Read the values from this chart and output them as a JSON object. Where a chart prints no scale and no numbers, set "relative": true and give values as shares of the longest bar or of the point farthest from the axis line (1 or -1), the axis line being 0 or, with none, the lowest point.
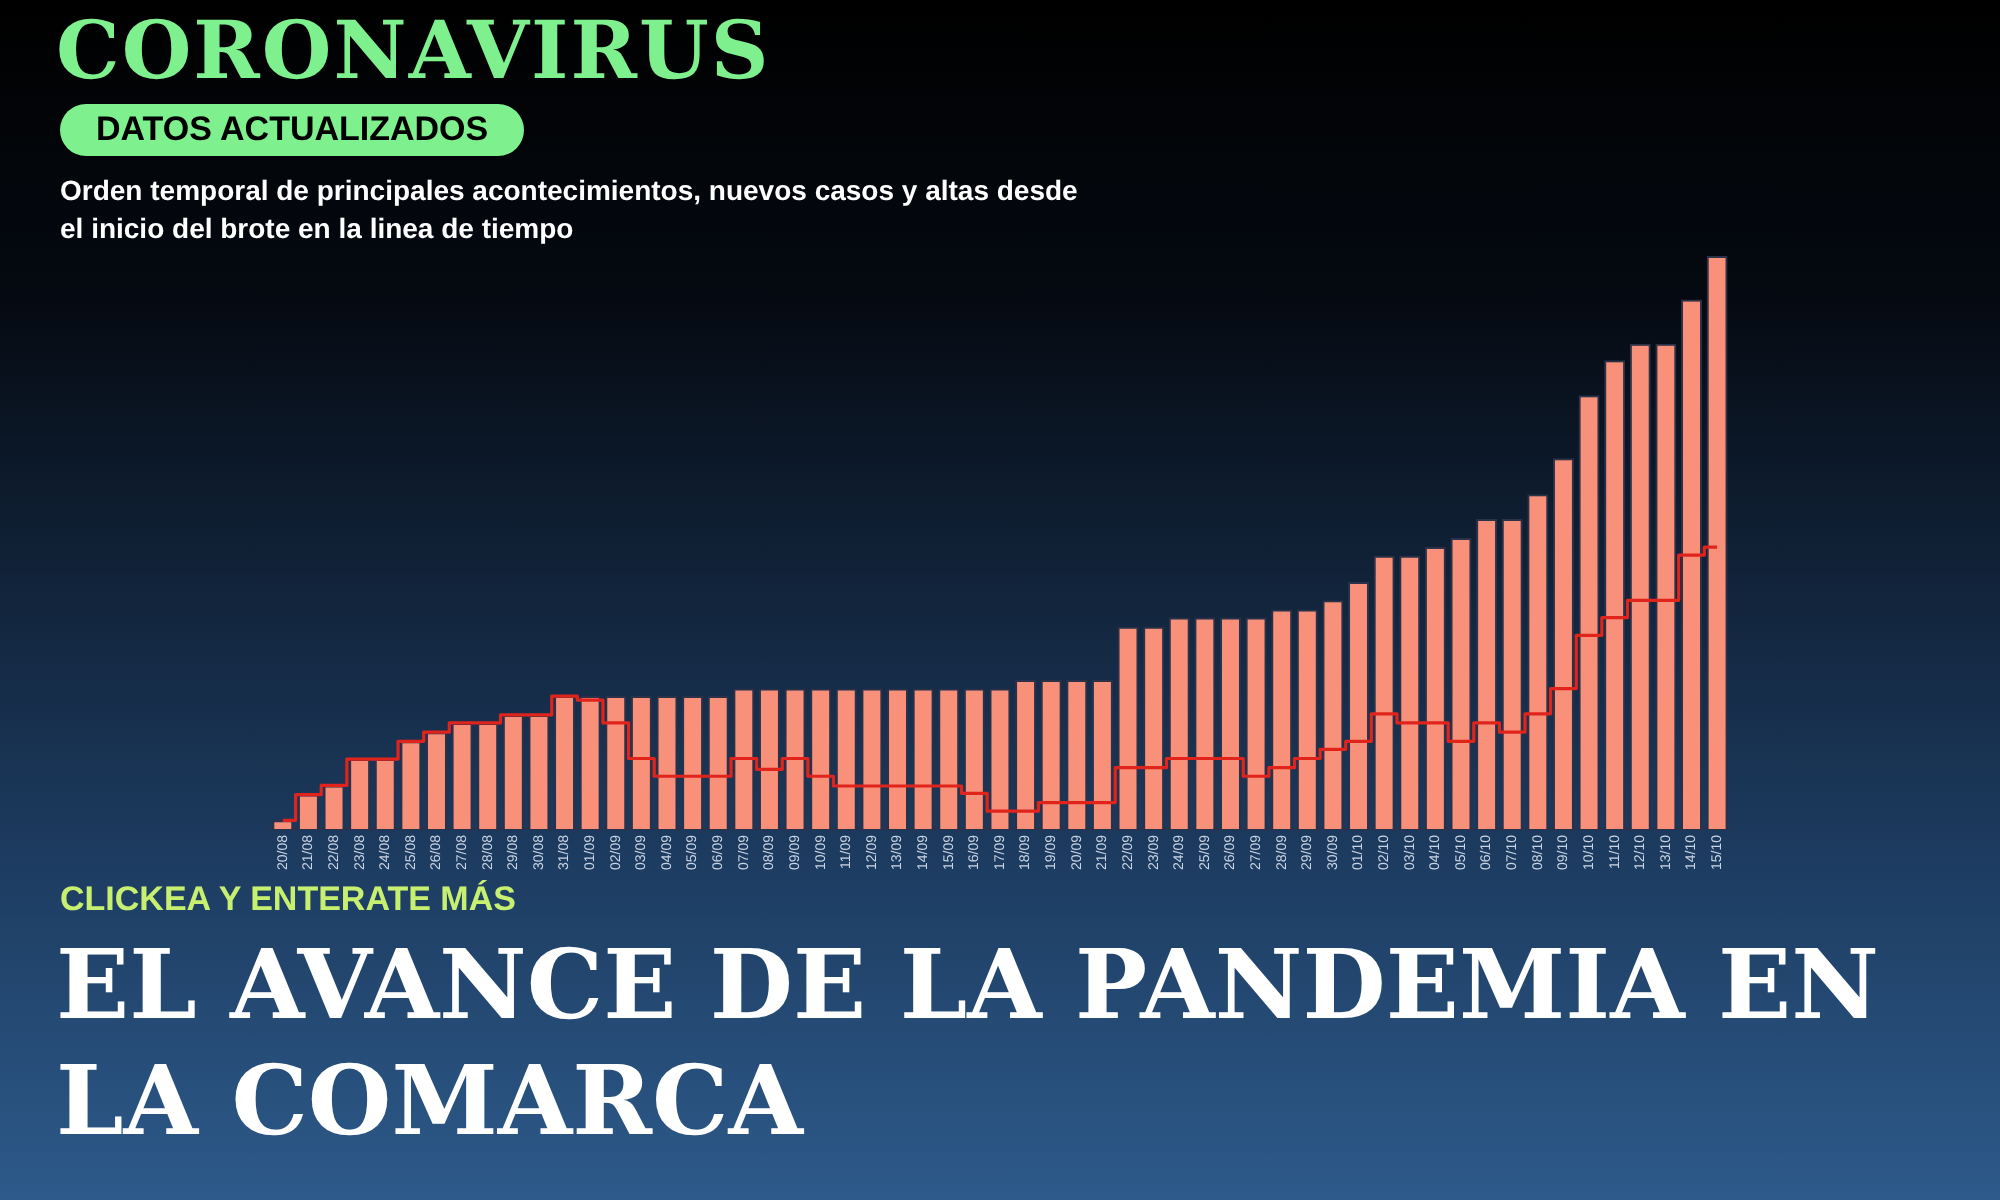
{
  "chart_data": {
    "type": "bar",
    "title": "CORONAVIRUS",
    "subtitle": "DATOS ACTUALIZADOS",
    "relative": true,
    "annotations": [
      "Orden temporal de principales acontecimientos, nuevos casos y altas desde el inicio del brote en la linea de tiempo",
      "CLICKEA Y ENTERATE MÁS",
      "EL AVANCE DE LA PANDEMIA EN LA COMARCA"
    ],
    "categories": [
      "20/08",
      "21/08",
      "22/08",
      "23/08",
      "24/08",
      "25/08",
      "26/08",
      "27/08",
      "28/08",
      "29/08",
      "30/08",
      "31/08",
      "01/09",
      "02/09",
      "03/09",
      "04/09",
      "05/09",
      "06/09",
      "07/09",
      "08/09",
      "09/09",
      "10/09",
      "11/09",
      "12/09",
      "13/09",
      "14/09",
      "15/09",
      "16/09",
      "17/09",
      "18/09",
      "19/09",
      "20/09",
      "21/09",
      "22/09",
      "23/09",
      "24/09",
      "25/09",
      "26/09",
      "27/09",
      "28/09",
      "29/09",
      "30/09",
      "01/10",
      "02/10",
      "03/10",
      "04/10",
      "05/10",
      "06/10",
      "07/10",
      "08/10",
      "09/10",
      "10/10",
      "11/10",
      "12/10",
      "13/10",
      "14/10",
      "15/10"
    ],
    "series": [
      {
        "color": "#f8907a",
        "values": [
          0.015,
          0.06,
          0.076,
          0.122,
          0.122,
          0.153,
          0.169,
          0.185,
          0.185,
          0.199,
          0.199,
          0.232,
          0.232,
          0.232,
          0.232,
          0.232,
          0.232,
          0.232,
          0.245,
          0.245,
          0.245,
          0.245,
          0.245,
          0.245,
          0.245,
          0.245,
          0.245,
          0.245,
          0.245,
          0.26,
          0.26,
          0.26,
          0.26,
          0.353,
          0.353,
          0.369,
          0.369,
          0.369,
          0.369,
          0.383,
          0.383,
          0.399,
          0.431,
          0.477,
          0.477,
          0.492,
          0.508,
          0.541,
          0.541,
          0.584,
          0.647,
          0.757,
          0.818,
          0.847,
          0.847,
          0.924,
          1
        ]
      },
      {
        "type": "step",
        "color": "#e0241c",
        "values": [
          0.015,
          0.06,
          0.076,
          0.122,
          0.122,
          0.153,
          0.169,
          0.185,
          0.185,
          0.199,
          0.199,
          0.232,
          0.225,
          0.185,
          0.123,
          0.092,
          0.092,
          0.092,
          0.123,
          0.104,
          0.123,
          0.092,
          0.075,
          0.075,
          0.075,
          0.075,
          0.075,
          0.062,
          0.031,
          0.031,
          0.046,
          0.046,
          0.046,
          0.107,
          0.107,
          0.123,
          0.123,
          0.123,
          0.092,
          0.107,
          0.123,
          0.139,
          0.153,
          0.201,
          0.185,
          0.185,
          0.153,
          0.185,
          0.169,
          0.201,
          0.245,
          0.338,
          0.369,
          0.399,
          0.399,
          0.478,
          0.492
        ]
      }
    ]
  }
}
